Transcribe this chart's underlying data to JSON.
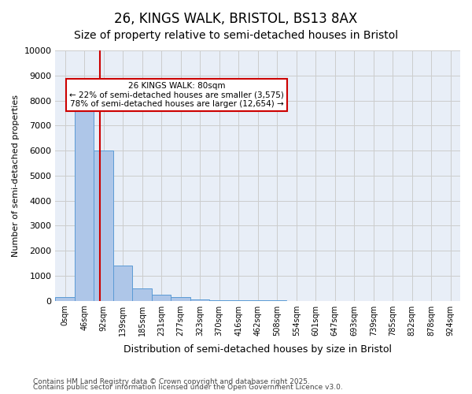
{
  "title1": "26, KINGS WALK, BRISTOL, BS13 8AX",
  "title2": "Size of property relative to semi-detached houses in Bristol",
  "xlabel": "Distribution of semi-detached houses by size in Bristol",
  "ylabel": "Number of semi-detached properties",
  "footnote1": "Contains HM Land Registry data © Crown copyright and database right 2025.",
  "footnote2": "Contains public sector information licensed under the Open Government Licence v3.0.",
  "bar_values": [
    150,
    7900,
    6000,
    1400,
    500,
    230,
    130,
    60,
    20,
    5,
    2,
    1,
    0,
    0,
    0,
    0,
    0,
    0,
    0,
    0,
    0
  ],
  "bar_labels": [
    "0sqm",
    "46sqm",
    "92sqm",
    "139sqm",
    "185sqm",
    "231sqm",
    "277sqm",
    "323sqm",
    "370sqm",
    "416sqm",
    "462sqm",
    "508sqm",
    "554sqm",
    "601sqm",
    "647sqm",
    "693sqm",
    "739sqm",
    "785sqm",
    "832sqm",
    "878sqm",
    "924sqm"
  ],
  "bar_color": "#aec6e8",
  "bar_edge_color": "#5b9bd5",
  "grid_color": "#cccccc",
  "bg_color": "#e8eef7",
  "vline_x": 1.8,
  "vline_color": "#cc0000",
  "annotation_text": "26 KINGS WALK: 80sqm\n← 22% of semi-detached houses are smaller (3,575)\n78% of semi-detached houses are larger (12,654) →",
  "annotation_box_color": "#cc0000",
  "ylim": [
    0,
    10000
  ],
  "yticks": [
    0,
    1000,
    2000,
    3000,
    4000,
    5000,
    6000,
    7000,
    8000,
    9000,
    10000
  ],
  "title_fontsize": 12,
  "subtitle_fontsize": 10,
  "annot_fontsize": 7.5,
  "footnote_fontsize": 6.5
}
